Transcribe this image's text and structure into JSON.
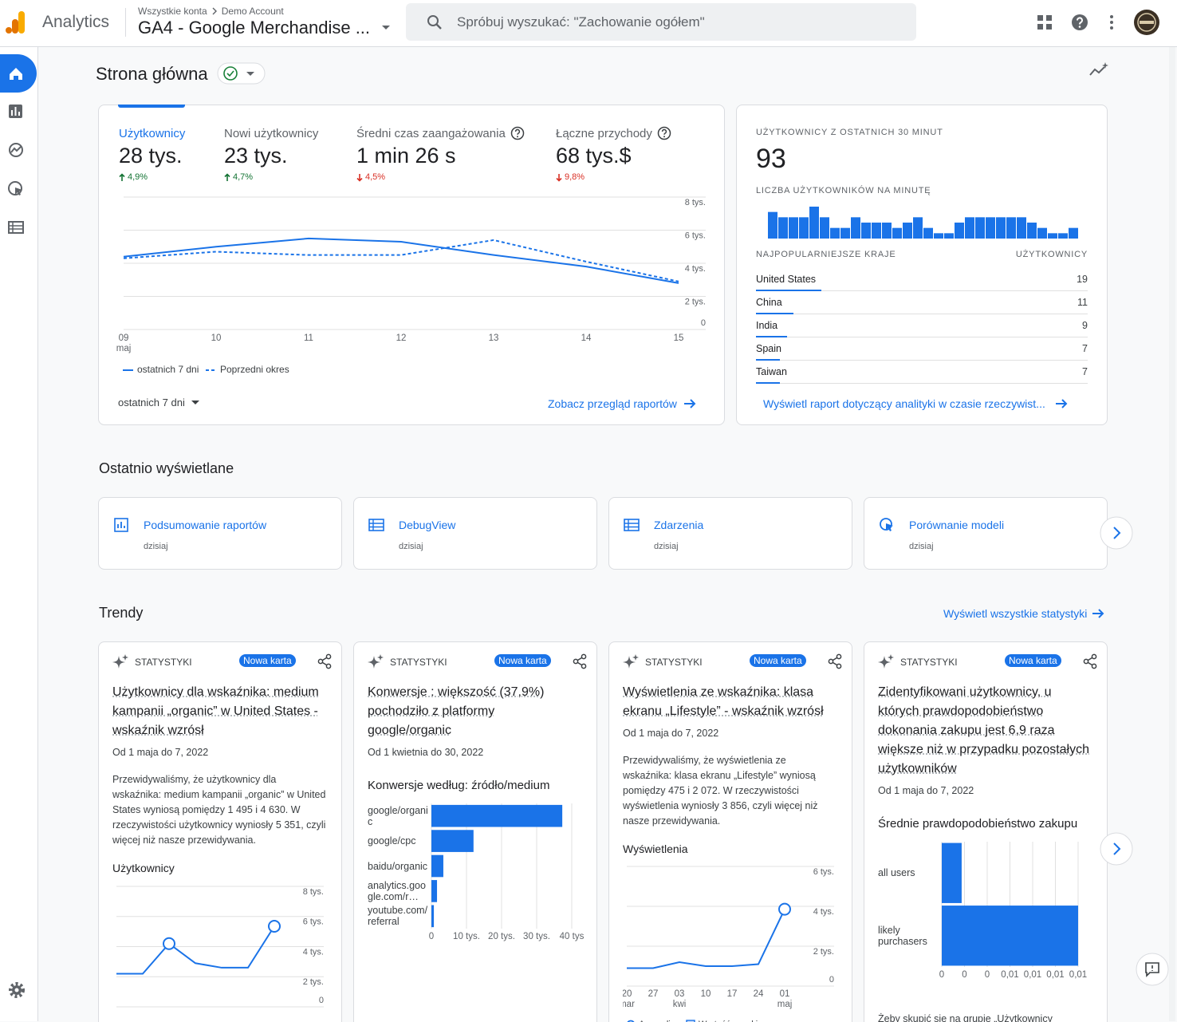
{
  "header": {
    "product": "Analytics",
    "breadcrumb": [
      "Wszystkie konta",
      "Demo Account"
    ],
    "property": "GA4 - Google Merchandise ...",
    "search_placeholder": "Spróbuj wyszukać: \"Zachowanie ogółem\""
  },
  "page_title": "Strona główna",
  "summary": {
    "metrics": [
      {
        "name": "Użytkownicy",
        "value": "28 tys.",
        "change": "4,9%",
        "direction": "up",
        "info": false,
        "active": true
      },
      {
        "name": "Nowi użytkownicy",
        "value": "23 tys.",
        "change": "4,7%",
        "direction": "up",
        "info": false,
        "active": false
      },
      {
        "name": "Średni czas zaangażowania",
        "value": "1 min 26 s",
        "change": "4,5%",
        "direction": "down",
        "info": true,
        "active": false
      },
      {
        "name": "Łączne przychody",
        "value": "68 tys.$",
        "change": "9,8%",
        "direction": "down",
        "info": true,
        "active": false
      }
    ],
    "chart": {
      "type": "line",
      "categories": [
        "09",
        "10",
        "11",
        "12",
        "13",
        "14",
        "15"
      ],
      "month_labels": [
        "maj",
        null,
        null,
        null,
        null,
        null,
        null
      ],
      "series": [
        {
          "name": "ostatnich 7 dni",
          "color": "#1a73e8",
          "dashed": false,
          "values": [
            4400,
            5000,
            5500,
            5300,
            4500,
            3800,
            2800
          ]
        },
        {
          "name": "Poprzedni okres",
          "color": "#1a73e8",
          "dashed": true,
          "values": [
            4300,
            4700,
            4500,
            4500,
            5400,
            4100,
            2900
          ]
        }
      ],
      "ylim": [
        0,
        8000
      ],
      "yticks": [
        0,
        {
          "value": 2000,
          "label": "2 tys."
        },
        {
          "value": 4000,
          "label": "4 tys."
        },
        {
          "value": 6000,
          "label": "6 tys."
        },
        {
          "value": 8000,
          "label": "8 tys."
        }
      ],
      "grid": true
    },
    "period": "ostatnich 7 dni",
    "link": "Zobacz przegląd raportów"
  },
  "realtime": {
    "title": "UŻYTKOWNICY Z OSTATNICH 30 MINUT",
    "value": "93",
    "chart": {
      "type": "bar",
      "title": "LICZBA UŻYTKOWNIKÓW NA MINUTĘ",
      "color": "#1a73e8",
      "values": [
        5,
        4,
        4,
        4,
        6,
        4,
        2,
        2,
        4,
        3,
        3,
        3,
        2,
        3,
        4,
        2,
        1,
        1,
        3,
        4,
        4,
        4,
        4,
        4,
        4,
        3,
        2,
        1,
        1,
        2
      ]
    },
    "table": {
      "headers": [
        "NAJPOPULARNIEJSZE KRAJE",
        "UŻYTKOWNICY"
      ],
      "rows": [
        {
          "country": "United States",
          "users": 19
        },
        {
          "country": "China",
          "users": 11
        },
        {
          "country": "India",
          "users": 9
        },
        {
          "country": "Spain",
          "users": 7
        },
        {
          "country": "Taiwan",
          "users": 7
        }
      ]
    },
    "link": "Wyświetl raport dotyczący analityki w czasie rzeczywist..."
  },
  "recent": {
    "title": "Ostatnio wyświetlane",
    "items": [
      {
        "title": "Podsumowanie raportów",
        "subtitle": "dzisiaj",
        "icon": "chart"
      },
      {
        "title": "DebugView",
        "subtitle": "dzisiaj",
        "icon": "table"
      },
      {
        "title": "Zdarzenia",
        "subtitle": "dzisiaj",
        "icon": "table"
      },
      {
        "title": "Porównanie modeli",
        "subtitle": "dzisiaj",
        "icon": "attribution"
      }
    ]
  },
  "trends": {
    "title": "Trendy",
    "link": "Wyświetl wszystkie statystyki",
    "cards": [
      {
        "label": "STATYSTYKI",
        "badge": "Nowa karta",
        "heading": "Użytkownicy dla wskaźnika: medium kampanii „organic” w United States - wskaźnik wzrósł",
        "date": "Od 1 maja do 7, 2022",
        "description": "Przewidywaliśmy, że użytkownicy dla wskaźnika: medium kampanii „organic” w United States wyniosą pomiędzy 1 495 i 4 630. W rzeczywistości użytkownicy wyniosły 5 351, czyli więcej niż nasze przewidywania.",
        "chart": {
          "type": "line",
          "title": "Użytkownicy",
          "color": "#1a73e8",
          "values": [
            2200,
            2200,
            4200,
            2900,
            2600,
            2600,
            5351
          ],
          "anomalies": [
            false,
            false,
            true,
            false,
            false,
            false,
            true
          ],
          "ylim": [
            0,
            8000
          ],
          "yticks": [
            0,
            {
              "value": 2000,
              "label": "2 tys."
            },
            {
              "value": 4000,
              "label": "4 tys."
            },
            {
              "value": 6000,
              "label": "6 tys."
            },
            {
              "value": 8000,
              "label": "8 tys."
            }
          ],
          "grid": true
        }
      },
      {
        "label": "STATYSTYKI",
        "badge": "Nowa karta",
        "heading": "Konwersje : większość (37,9%) pochodziło z platformy google/organic",
        "date": "Od 1 kwietnia do 30, 2022",
        "chart": {
          "type": "hbar",
          "title": "Konwersje według: źródło/medium",
          "color": "#1a73e8",
          "categories": [
            "google/organic",
            "google/cpc",
            "baidu/organic",
            "analytics.google.com/r…",
            "youtube.com/referral"
          ],
          "values": [
            37300,
            12000,
            3400,
            1600,
            700
          ],
          "xlim": [
            0,
            45000
          ],
          "xticks": [
            0,
            {
              "value": 10000,
              "label": "10 tys."
            },
            {
              "value": 20000,
              "label": "20 tys."
            },
            {
              "value": 30000,
              "label": "30 tys."
            },
            {
              "value": 40000,
              "label": "40 tys"
            }
          ]
        }
      },
      {
        "label": "STATYSTYKI",
        "badge": "Nowa karta",
        "heading": "Wyświetlenia ze wskaźnika: klasa ekranu „Lifestyle” - wskaźnik wzrósł",
        "date": "Od 1 maja do 7, 2022",
        "description": "Przewidywaliśmy, że wyświetlenia ze wskaźnika: klasa ekranu „Lifestyle” wyniosą pomiędzy 475 i 2 072. W rzeczywistości wyświetlenia wyniosły 3 856, czyli więcej niż nasze przewidywania.",
        "chart": {
          "type": "line",
          "title": "Wyświetlenia",
          "color": "#1a73e8",
          "categories": [
            "20",
            "27",
            "03",
            "10",
            "17",
            "24",
            "01"
          ],
          "month_labels": [
            "mar",
            null,
            "kwi",
            null,
            null,
            null,
            "maj"
          ],
          "values": [
            900,
            900,
            1200,
            1000,
            1000,
            1100,
            3856
          ],
          "anomalies": [
            false,
            false,
            false,
            false,
            false,
            false,
            true
          ],
          "ylim": [
            0,
            6000
          ],
          "yticks": [
            0,
            {
              "value": 2000,
              "label": "2 tys."
            },
            {
              "value": 4000,
              "label": "4 tys."
            },
            {
              "value": 6000,
              "label": "6 tys."
            }
          ],
          "grid": true,
          "legend": [
            "Anomalia",
            "Wartość oczekiwana"
          ]
        }
      },
      {
        "label": "STATYSTYKI",
        "badge": "Nowa karta",
        "heading": "Zidentyfikowani użytkownicy, u których prawdopodobieństwo dokonania zakupu jest 6,9 raza większe niż w przypadku pozostałych użytkowników",
        "date": "Od 1 maja do 7, 2022",
        "chart": {
          "type": "hbar",
          "title": "Średnie prawdopodobieństwo zakupu",
          "color": "#1a73e8",
          "categories": [
            "all users",
            "likely purchasers"
          ],
          "values": [
            0.00175,
            0.012
          ],
          "xlim": [
            0,
            0.012
          ],
          "xticks": [
            0,
            {
              "value": 0.002,
              "label": "0"
            },
            {
              "value": 0.004,
              "label": "0"
            },
            {
              "value": 0.006,
              "label": "0,01"
            },
            {
              "value": 0.008,
              "label": "0,01"
            },
            {
              "value": 0.01,
              "label": "0,01"
            },
            {
              "value": 0.012,
              "label": "0,01"
            }
          ]
        },
        "footer": "Żeby skupić się na grupie „Użytkownicy"
      }
    ]
  }
}
